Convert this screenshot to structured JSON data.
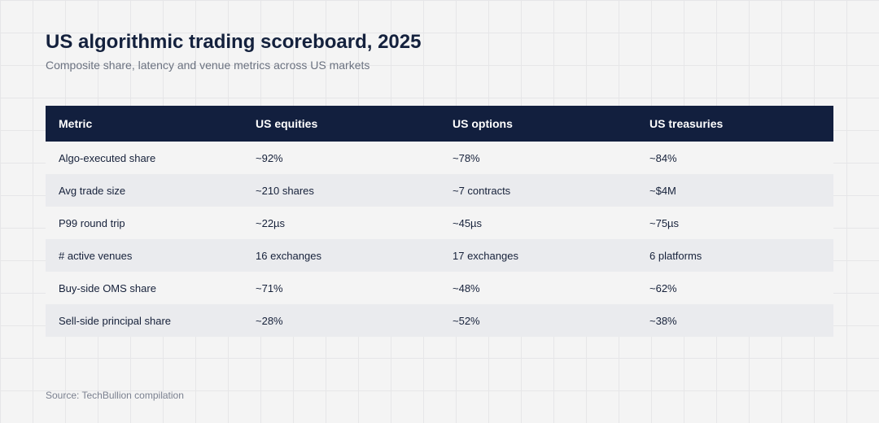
{
  "chart_data": {
    "type": "table",
    "title": "US algorithmic trading scoreboard, 2025",
    "subtitle": "Composite share, latency and venue metrics across US markets",
    "columns": [
      "Metric",
      "US equities",
      "US options",
      "US treasuries"
    ],
    "rows": [
      [
        "Algo-executed share",
        "~92%",
        "~78%",
        "~84%"
      ],
      [
        "Avg trade size",
        "~210 shares",
        "~7 contracts",
        "~$4M"
      ],
      [
        "P99 round trip",
        "~22µs",
        "~45µs",
        "~75µs"
      ],
      [
        "# active venues",
        "16 exchanges",
        "17 exchanges",
        "6 platforms"
      ],
      [
        "Buy-side OMS share",
        "~71%",
        "~48%",
        "~62%"
      ],
      [
        "Sell-side principal share",
        "~28%",
        "~52%",
        "~38%"
      ]
    ],
    "source": "Source: TechBullion compilation"
  },
  "colors": {
    "header_background": "#121f3e",
    "header_text": "#ffffff",
    "row_alt_background": "#eaebee",
    "page_background": "#f4f4f4"
  }
}
